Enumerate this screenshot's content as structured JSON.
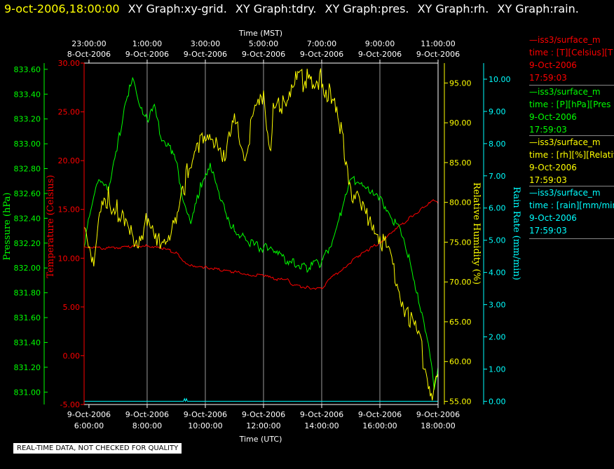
{
  "header": {
    "timestamp": "9-oct-2006,18:00:00",
    "graphs": [
      "XY Graph:xy-grid.",
      "XY Graph:tdry.",
      "XY Graph:pres.",
      "XY Graph:rh.",
      "XY Graph:rain."
    ]
  },
  "footer": {
    "quality_note": "REAL-TIME DATA, NOT CHECKED FOR QUALITY"
  },
  "colors": {
    "temperature": "#ff0000",
    "pressure": "#00ff00",
    "rh": "#ffff00",
    "rain": "#00ffff",
    "background": "#000000",
    "grid": "#9a9a9a"
  },
  "legend": [
    {
      "name": "iss3/surface_m",
      "line1": "time : [T][Celsius][T",
      "date": "9-Oct-2006",
      "time": "17:59:03",
      "color": "#ff0000"
    },
    {
      "name": "iss3/surface_m",
      "line1": "time : [P][hPa][Pres",
      "date": "9-Oct-2006",
      "time": "17:59:03",
      "color": "#00ff00"
    },
    {
      "name": "iss3/surface_m",
      "line1": "time : [rh][%][Relativ",
      "date": "9-Oct-2006",
      "time": "17:59:03",
      "color": "#ffff00"
    },
    {
      "name": "iss3/surface_m",
      "line1": "time : [rain][mm/min",
      "date": "9-Oct-2006",
      "time": "17:59:03",
      "color": "#00ffff"
    }
  ],
  "chart_data": {
    "type": "line",
    "x_range_utc": [
      "2006-10-09T05:50",
      "2006-10-09T18:00"
    ],
    "xlabel_top": "Time (MST)",
    "xlabel_bottom": "Time (UTC)",
    "top_ticks": [
      {
        "x": "2006-10-09T06:00",
        "time": "23:00:00",
        "date": "8-Oct-2006"
      },
      {
        "x": "2006-10-09T08:00",
        "time": "1:00:00",
        "date": "9-Oct-2006"
      },
      {
        "x": "2006-10-09T10:00",
        "time": "3:00:00",
        "date": "9-Oct-2006"
      },
      {
        "x": "2006-10-09T12:00",
        "time": "5:00:00",
        "date": "9-Oct-2006"
      },
      {
        "x": "2006-10-09T14:00",
        "time": "7:00:00",
        "date": "9-Oct-2006"
      },
      {
        "x": "2006-10-09T16:00",
        "time": "9:00:00",
        "date": "9-Oct-2006"
      },
      {
        "x": "2006-10-09T18:00",
        "time": "11:00:00",
        "date": "9-Oct-2006"
      }
    ],
    "bottom_ticks": [
      {
        "x": "2006-10-09T06:00",
        "date": "9-Oct-2006",
        "time": "6:00:00"
      },
      {
        "x": "2006-10-09T08:00",
        "date": "9-Oct-2006",
        "time": "8:00:00"
      },
      {
        "x": "2006-10-09T10:00",
        "date": "9-Oct-2006",
        "time": "10:00:00"
      },
      {
        "x": "2006-10-09T12:00",
        "date": "9-Oct-2006",
        "time": "12:00:00"
      },
      {
        "x": "2006-10-09T14:00",
        "date": "9-Oct-2006",
        "time": "14:00:00"
      },
      {
        "x": "2006-10-09T16:00",
        "date": "9-Oct-2006",
        "time": "16:00:00"
      },
      {
        "x": "2006-10-09T18:00",
        "date": "9-Oct-2006",
        "time": "18:00:00"
      }
    ],
    "axes": {
      "temperature": {
        "label": "Temperature (Celsius)",
        "range": [
          -5,
          30
        ],
        "ticks": [
          "-5.00",
          "0.00",
          "5.00",
          "10.00",
          "15.00",
          "20.00",
          "25.00",
          "30.00"
        ]
      },
      "pressure": {
        "label": "Pressure (hPa)",
        "range": [
          830.9,
          833.65
        ],
        "ticks": [
          "831.00",
          "831.20",
          "831.40",
          "831.60",
          "831.80",
          "832.00",
          "832.20",
          "832.40",
          "832.60",
          "832.80",
          "833.00",
          "833.20",
          "833.40",
          "833.60"
        ]
      },
      "rh": {
        "label": "Relative Humidity (%)",
        "range": [
          54.6,
          97.5
        ],
        "ticks": [
          "55.00",
          "60.00",
          "65.00",
          "70.00",
          "75.00",
          "80.00",
          "85.00",
          "90.00",
          "95.00"
        ]
      },
      "rain": {
        "label": "Rain Rate (mm/min)",
        "range": [
          -0.1,
          10.5
        ],
        "ticks": [
          "0.00",
          "1.00",
          "2.00",
          "3.00",
          "4.00",
          "5.00",
          "6.00",
          "7.00",
          "8.00",
          "9.00",
          "10.00"
        ]
      }
    },
    "series": [
      {
        "name": "iss3/surface_m",
        "quantity": "temperature",
        "color": "#ff0000",
        "points": [
          [
            "2006-10-09T05:50",
            11.2
          ],
          [
            "2006-10-09T06:30",
            11.0
          ],
          [
            "2006-10-09T07:30",
            11.2
          ],
          [
            "2006-10-09T08:00",
            11.3
          ],
          [
            "2006-10-09T08:30",
            11.0
          ],
          [
            "2006-10-09T09:00",
            10.6
          ],
          [
            "2006-10-09T09:20",
            9.5
          ],
          [
            "2006-10-09T09:40",
            9.0
          ],
          [
            "2006-10-09T10:00",
            9.1
          ],
          [
            "2006-10-09T10:30",
            8.8
          ],
          [
            "2006-10-09T11:00",
            8.6
          ],
          [
            "2006-10-09T11:30",
            8.3
          ],
          [
            "2006-10-09T12:00",
            8.2
          ],
          [
            "2006-10-09T12:30",
            7.8
          ],
          [
            "2006-10-09T12:50",
            7.9
          ],
          [
            "2006-10-09T13:00",
            7.2
          ],
          [
            "2006-10-09T13:30",
            7.0
          ],
          [
            "2006-10-09T14:00",
            6.9
          ],
          [
            "2006-10-09T14:20",
            8.0
          ],
          [
            "2006-10-09T14:45",
            9.0
          ],
          [
            "2006-10-09T15:15",
            10.2
          ],
          [
            "2006-10-09T15:40",
            11.0
          ],
          [
            "2006-10-09T16:00",
            11.6
          ],
          [
            "2006-10-09T16:30",
            12.8
          ],
          [
            "2006-10-09T17:00",
            14.1
          ],
          [
            "2006-10-09T17:30",
            15.2
          ],
          [
            "2006-10-09T17:50",
            15.9
          ],
          [
            "2006-10-09T18:00",
            15.6
          ]
        ]
      },
      {
        "name": "iss3/surface_m",
        "quantity": "pressure",
        "color": "#00ff00",
        "points": [
          [
            "2006-10-09T05:50",
            832.2
          ],
          [
            "2006-10-09T06:10",
            832.55
          ],
          [
            "2006-10-09T06:20",
            832.75
          ],
          [
            "2006-10-09T06:40",
            832.6
          ],
          [
            "2006-10-09T07:00",
            833.0
          ],
          [
            "2006-10-09T07:15",
            833.35
          ],
          [
            "2006-10-09T07:30",
            833.5
          ],
          [
            "2006-10-09T07:40",
            833.37
          ],
          [
            "2006-10-09T08:00",
            833.2
          ],
          [
            "2006-10-09T08:15",
            833.28
          ],
          [
            "2006-10-09T08:30",
            833.05
          ],
          [
            "2006-10-09T08:50",
            832.95
          ],
          [
            "2006-10-09T09:00",
            832.85
          ],
          [
            "2006-10-09T09:15",
            832.55
          ],
          [
            "2006-10-09T09:30",
            832.35
          ],
          [
            "2006-10-09T09:50",
            832.65
          ],
          [
            "2006-10-09T10:10",
            832.85
          ],
          [
            "2006-10-09T10:30",
            832.55
          ],
          [
            "2006-10-09T11:00",
            832.3
          ],
          [
            "2006-10-09T11:30",
            832.2
          ],
          [
            "2006-10-09T12:00",
            832.15
          ],
          [
            "2006-10-09T12:15",
            832.2
          ],
          [
            "2006-10-09T12:30",
            832.1
          ],
          [
            "2006-10-09T13:00",
            832.05
          ],
          [
            "2006-10-09T13:30",
            832.0
          ],
          [
            "2006-10-09T14:00",
            832.05
          ],
          [
            "2006-10-09T14:20",
            832.2
          ],
          [
            "2006-10-09T14:40",
            832.45
          ],
          [
            "2006-10-09T15:00",
            832.7
          ],
          [
            "2006-10-09T15:20",
            832.7
          ],
          [
            "2006-10-09T15:40",
            832.6
          ],
          [
            "2006-10-09T16:00",
            832.55
          ],
          [
            "2006-10-09T16:20",
            832.45
          ],
          [
            "2006-10-09T16:40",
            832.3
          ],
          [
            "2006-10-09T17:00",
            832.1
          ],
          [
            "2006-10-09T17:20",
            831.75
          ],
          [
            "2006-10-09T17:40",
            831.35
          ],
          [
            "2006-10-09T17:52",
            831.05
          ],
          [
            "2006-10-09T18:00",
            831.2
          ]
        ]
      },
      {
        "name": "iss3/surface_m",
        "quantity": "rh",
        "color": "#ffff00",
        "points": [
          [
            "2006-10-09T05:50",
            76.5
          ],
          [
            "2006-10-09T06:10",
            73.0
          ],
          [
            "2006-10-09T06:20",
            78.0
          ],
          [
            "2006-10-09T06:40",
            80.5
          ],
          [
            "2006-10-09T07:00",
            79.0
          ],
          [
            "2006-10-09T07:20",
            76.0
          ],
          [
            "2006-10-09T07:40",
            75.5
          ],
          [
            "2006-10-09T08:00",
            77.5
          ],
          [
            "2006-10-09T08:20",
            74.5
          ],
          [
            "2006-10-09T08:40",
            76.0
          ],
          [
            "2006-10-09T09:00",
            77.0
          ],
          [
            "2006-10-09T09:20",
            83.0
          ],
          [
            "2006-10-09T09:40",
            88.0
          ],
          [
            "2006-10-09T10:00",
            87.0
          ],
          [
            "2006-10-09T10:20",
            88.5
          ],
          [
            "2006-10-09T10:40",
            86.0
          ],
          [
            "2006-10-09T11:00",
            90.0
          ],
          [
            "2006-10-09T11:20",
            86.0
          ],
          [
            "2006-10-09T11:40",
            91.0
          ],
          [
            "2006-10-09T12:00",
            93.0
          ],
          [
            "2006-10-09T12:15",
            87.0
          ],
          [
            "2006-10-09T12:20",
            91.5
          ],
          [
            "2006-10-09T12:40",
            92.5
          ],
          [
            "2006-10-09T13:00",
            95.0
          ],
          [
            "2006-10-09T13:30",
            95.5
          ],
          [
            "2006-10-09T14:00",
            95.5
          ],
          [
            "2006-10-09T14:20",
            93.0
          ],
          [
            "2006-10-09T14:40",
            89.0
          ],
          [
            "2006-10-09T15:00",
            82.0
          ],
          [
            "2006-10-09T15:20",
            79.0
          ],
          [
            "2006-10-09T15:40",
            78.0
          ],
          [
            "2006-10-09T16:00",
            76.0
          ],
          [
            "2006-10-09T16:20",
            73.0
          ],
          [
            "2006-10-09T16:40",
            69.0
          ],
          [
            "2006-10-09T17:00",
            65.5
          ],
          [
            "2006-10-09T17:20",
            63.0
          ],
          [
            "2006-10-09T17:40",
            57.5
          ],
          [
            "2006-10-09T17:52",
            56.0
          ],
          [
            "2006-10-09T18:00",
            58.5
          ]
        ]
      },
      {
        "name": "iss3/surface_m",
        "quantity": "rain",
        "color": "#00ffff",
        "points": [
          [
            "2006-10-09T05:50",
            0.0
          ],
          [
            "2006-10-09T09:15",
            0.0
          ],
          [
            "2006-10-09T09:17",
            0.08
          ],
          [
            "2006-10-09T09:19",
            0.0
          ],
          [
            "2006-10-09T09:21",
            0.08
          ],
          [
            "2006-10-09T09:23",
            0.0
          ],
          [
            "2006-10-09T18:00",
            0.0
          ]
        ]
      }
    ]
  }
}
